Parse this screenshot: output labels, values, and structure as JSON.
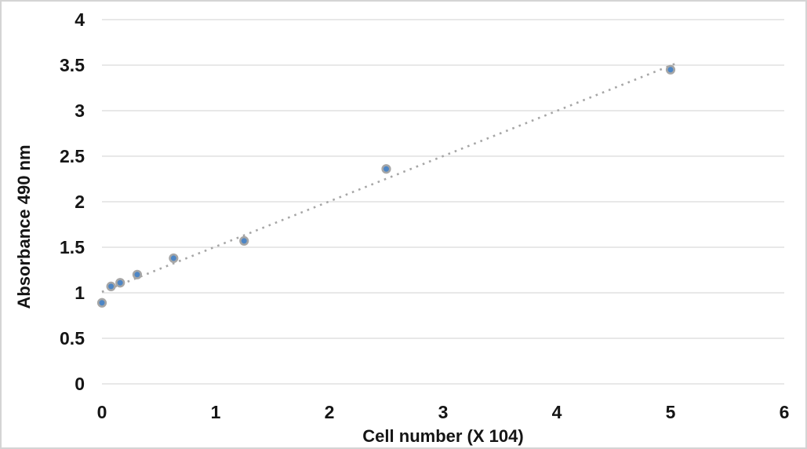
{
  "chart_data": {
    "type": "scatter",
    "title": "",
    "xlabel": "Cell number (X 104)",
    "ylabel": "Absorbance 490 nm",
    "xlim": [
      0,
      6
    ],
    "ylim": [
      0,
      4
    ],
    "x_ticks": [
      0,
      1,
      2,
      3,
      4,
      5,
      6
    ],
    "x_tick_labels": [
      "0",
      "1",
      "2",
      "3",
      "4",
      "5",
      "6"
    ],
    "y_ticks": [
      0,
      0.5,
      1,
      1.5,
      2,
      2.5,
      3,
      3.5,
      4
    ],
    "y_tick_labels": [
      "0",
      "0.5",
      "1",
      "1.5",
      "2",
      "2.5",
      "3",
      "3.5",
      "4"
    ],
    "grid": {
      "horizontal": true,
      "vertical": false
    },
    "legend": "none",
    "points": [
      [
        0,
        0.89
      ],
      [
        0.08,
        1.07
      ],
      [
        0.16,
        1.11
      ],
      [
        0.31,
        1.2
      ],
      [
        0.63,
        1.38
      ],
      [
        1.25,
        1.57
      ],
      [
        2.5,
        2.36
      ],
      [
        5,
        3.45
      ]
    ],
    "trendline": {
      "type": "linear",
      "style": "dotted",
      "x_start": 0,
      "y_start": 1.01,
      "x_end": 5.05,
      "y_end": 3.52
    },
    "colors": {
      "marker_fill": "#4d86c6",
      "marker_stroke": "#a6a6a6",
      "trendline": "#a6a6a6",
      "gridline": "#d9d9d9",
      "axis_line": "#d9d9d9",
      "tick_label": "#151515",
      "frame_border": "#d4d4d4",
      "background": "#ffffff"
    }
  }
}
